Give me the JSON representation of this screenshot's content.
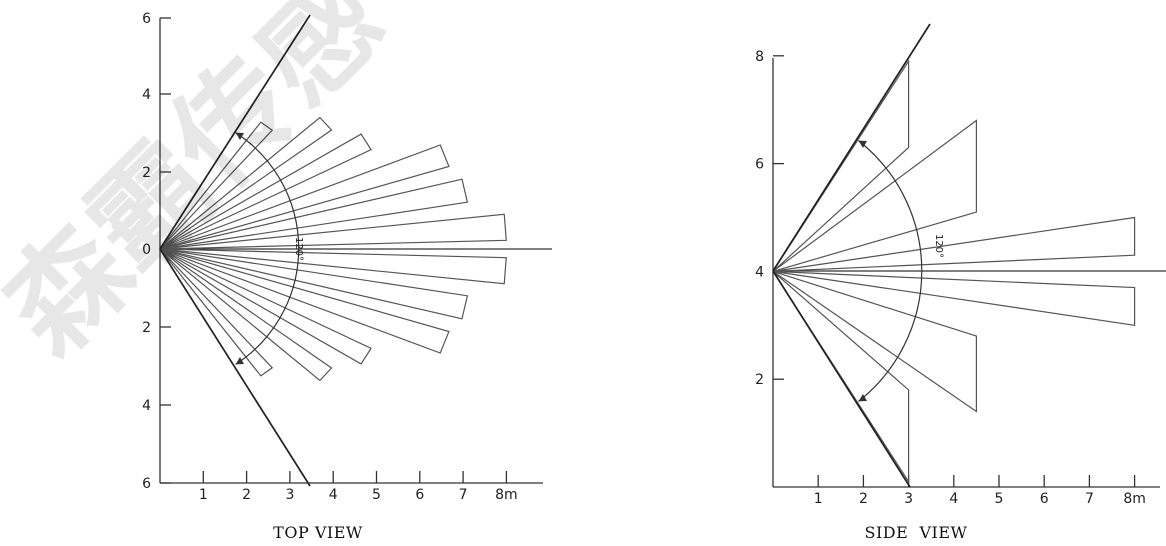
{
  "top_view": {
    "title": "TOP VIEW",
    "x_ticks": [
      "1",
      "2",
      "3",
      "4",
      "5",
      "6",
      "7",
      "8m"
    ],
    "y_ticks": [
      "6",
      "4",
      "2",
      "0",
      "2",
      "4",
      "6"
    ],
    "angle_label": "120°",
    "beams": [
      {
        "angle_deg": 52,
        "length_m": 4.0
      },
      {
        "angle_deg": 40,
        "length_m": 5.0
      },
      {
        "angle_deg": 30,
        "length_m": 5.5
      },
      {
        "angle_deg": 20,
        "length_m": 7.0
      },
      {
        "angle_deg": 12,
        "length_m": 7.2
      },
      {
        "angle_deg": 4,
        "length_m": 8.0
      },
      {
        "angle_deg": -4,
        "length_m": 8.0
      },
      {
        "angle_deg": -12,
        "length_m": 7.2
      },
      {
        "angle_deg": -20,
        "length_m": 7.0
      },
      {
        "angle_deg": -30,
        "length_m": 5.5
      },
      {
        "angle_deg": -40,
        "length_m": 5.0
      },
      {
        "angle_deg": -52,
        "length_m": 4.0
      }
    ]
  },
  "side_view": {
    "title": "SIDE  VIEW",
    "x_ticks": [
      "1",
      "2",
      "3",
      "4",
      "5",
      "6",
      "7",
      "8m"
    ],
    "y_ticks": [
      "8",
      "6",
      "4",
      "2"
    ],
    "angle_label": "120°",
    "beams": [
      {
        "x_m": 3.0,
        "y_top_m": 7.9,
        "y_bottom_m": 6.3
      },
      {
        "x_m": 4.5,
        "y_top_m": 6.8,
        "y_bottom_m": 5.1
      },
      {
        "x_m": 8.0,
        "y_top_m": 5.0,
        "y_bottom_m": 4.3
      },
      {
        "x_m": 8.0,
        "y_top_m": 3.7,
        "y_bottom_m": 3.0
      },
      {
        "x_m": 4.5,
        "y_top_m": 2.8,
        "y_bottom_m": 1.4
      },
      {
        "x_m": 3.0,
        "y_top_m": 1.8,
        "y_bottom_m": 0.1
      }
    ]
  },
  "watermark": {
    "text": "森霸传感"
  }
}
